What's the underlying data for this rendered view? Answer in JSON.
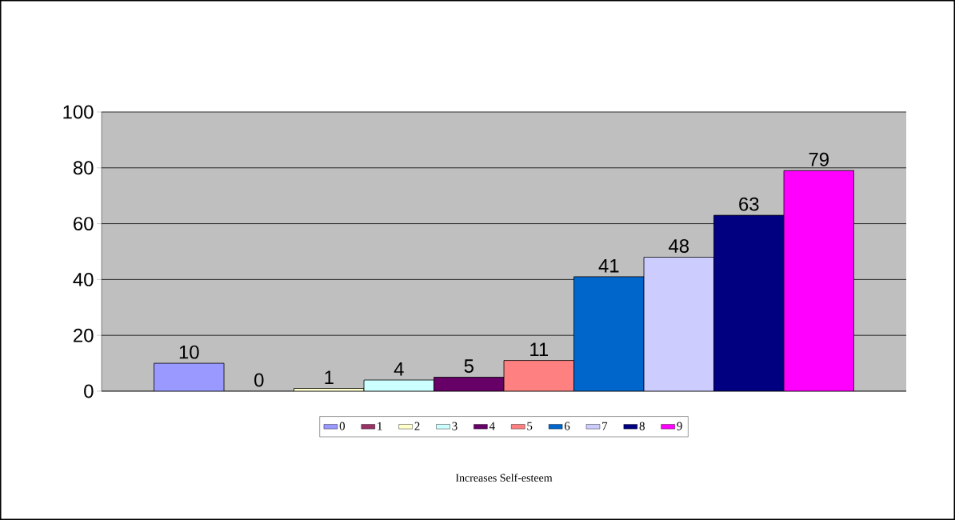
{
  "chart_data": {
    "type": "bar",
    "annotations": [
      "Increases Self-esteem"
    ],
    "categories": [
      null
    ],
    "series": [
      {
        "name": "0",
        "color": "#9999ff",
        "values": [
          10
        ],
        "value_labels": [
          "10"
        ]
      },
      {
        "name": "1",
        "color": "#993366",
        "values": [
          null
        ],
        "value_labels": [
          "0"
        ]
      },
      {
        "name": "2",
        "color": "#ffffcc",
        "values": [
          1
        ],
        "value_labels": [
          "1"
        ]
      },
      {
        "name": "3",
        "color": "#ccffff",
        "values": [
          4
        ],
        "value_labels": [
          "4"
        ]
      },
      {
        "name": "4",
        "color": "#660066",
        "values": [
          5
        ],
        "value_labels": [
          "5"
        ]
      },
      {
        "name": "5",
        "color": "#ff8080",
        "values": [
          11
        ],
        "value_labels": [
          "11"
        ]
      },
      {
        "name": "6",
        "color": "#0066cc",
        "values": [
          41
        ],
        "value_labels": [
          "41"
        ]
      },
      {
        "name": "7",
        "color": "#ccccff",
        "values": [
          48
        ],
        "value_labels": [
          "48"
        ]
      },
      {
        "name": "8",
        "color": "#000080",
        "values": [
          63
        ],
        "value_labels": [
          "63"
        ]
      },
      {
        "name": "9",
        "color": "#ff00ff",
        "values": [
          79
        ],
        "value_labels": [
          "79"
        ]
      }
    ],
    "ylim": [
      0,
      100
    ],
    "yticks": [
      0,
      20,
      40,
      60,
      80,
      100
    ],
    "grid": "y",
    "legend": "bottom"
  }
}
